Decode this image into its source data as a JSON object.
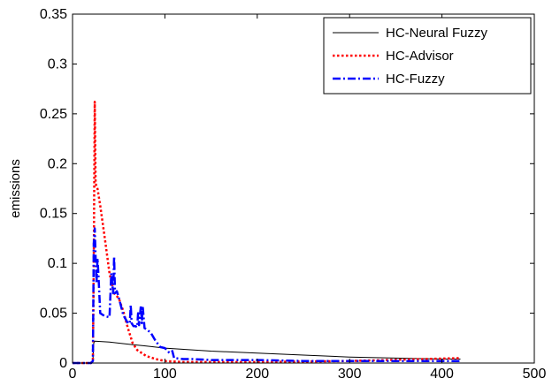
{
  "chart_data": {
    "type": "line",
    "ylabel": "emissions",
    "xlim": [
      0,
      500
    ],
    "ylim": [
      0,
      0.35
    ],
    "xticks": [
      0,
      100,
      200,
      300,
      400,
      500
    ],
    "yticks": [
      0,
      0.05,
      0.1,
      0.15,
      0.2,
      0.25,
      0.3,
      0.35
    ],
    "xtick_labels": [
      "0",
      "100",
      "200",
      "300",
      "400",
      "500"
    ],
    "ytick_labels": [
      "0",
      "0.05",
      "0.1",
      "0.15",
      "0.2",
      "0.25",
      "0.3",
      "0.35"
    ],
    "legend_position": "top-right",
    "grid": false,
    "series": [
      {
        "name": "HC-Neural Fuzzy",
        "color": "#000000",
        "style": "solid",
        "x": [
          0,
          20,
          22,
          23,
          24,
          40,
          60,
          80,
          100,
          150,
          200,
          250,
          300,
          350,
          400,
          420
        ],
        "y": [
          0,
          0,
          0.002,
          0.02,
          0.022,
          0.021,
          0.019,
          0.017,
          0.015,
          0.012,
          0.01,
          0.008,
          0.006,
          0.005,
          0.004,
          0.004
        ]
      },
      {
        "name": "HC-Advisor",
        "color": "#ff0000",
        "style": "dotted",
        "x": [
          0,
          20,
          22,
          23,
          24,
          25,
          27,
          30,
          35,
          40,
          45,
          50,
          55,
          60,
          65,
          70,
          80,
          90,
          100,
          120,
          150,
          200,
          300,
          420
        ],
        "y": [
          0,
          0,
          0.003,
          0.1,
          0.262,
          0.18,
          0.175,
          0.158,
          0.125,
          0.09,
          0.07,
          0.065,
          0.052,
          0.035,
          0.02,
          0.013,
          0.007,
          0.004,
          0.002,
          0.001,
          0.001,
          0.001,
          0.002,
          0.005
        ]
      },
      {
        "name": "HC-Fuzzy",
        "color": "#0000ff",
        "style": "dashdot",
        "x": [
          0,
          20,
          22,
          23,
          24,
          25,
          26,
          27,
          28,
          30,
          35,
          40,
          42,
          44,
          45,
          46,
          48,
          50,
          55,
          60,
          62,
          63,
          64,
          66,
          68,
          70,
          71,
          72,
          74,
          75,
          76,
          78,
          80,
          85,
          90,
          95,
          100,
          105,
          108,
          110,
          120,
          130,
          150,
          200,
          250,
          300,
          350,
          400,
          420
        ],
        "y": [
          0,
          0,
          0.002,
          0.12,
          0.135,
          0.105,
          0.08,
          0.105,
          0.09,
          0.05,
          0.047,
          0.046,
          0.09,
          0.07,
          0.107,
          0.07,
          0.072,
          0.066,
          0.048,
          0.04,
          0.04,
          0.058,
          0.04,
          0.037,
          0.037,
          0.036,
          0.05,
          0.038,
          0.058,
          0.04,
          0.057,
          0.035,
          0.034,
          0.03,
          0.022,
          0.016,
          0.015,
          0.01,
          0.012,
          0.005,
          0.004,
          0.004,
          0.003,
          0.003,
          0.002,
          0.002,
          0.002,
          0.002,
          0.002
        ]
      }
    ]
  }
}
